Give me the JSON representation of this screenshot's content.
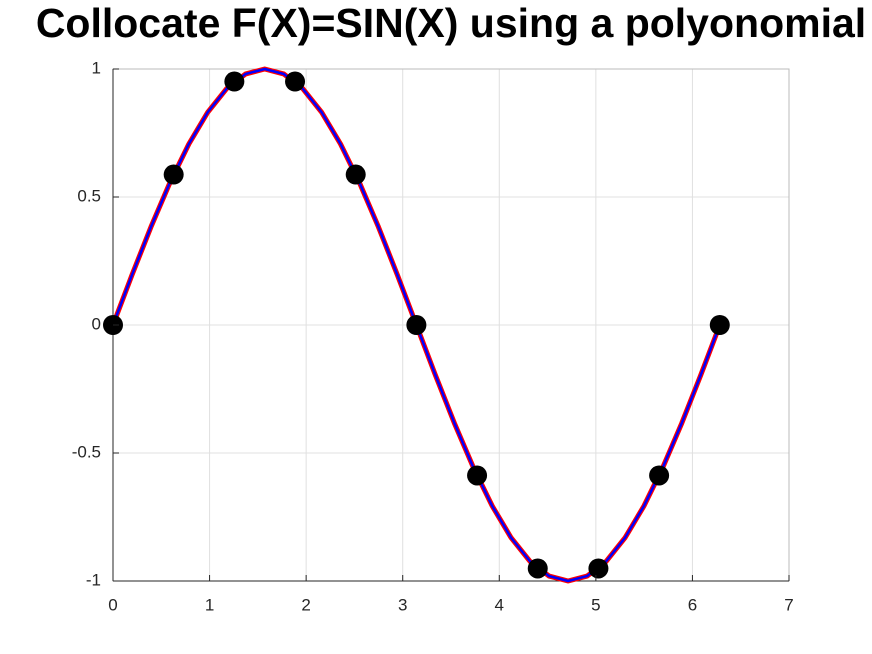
{
  "chart_data": {
    "type": "line",
    "title": "Collocate F(X)=SIN(X) using a polyonomial",
    "xlim": [
      0,
      7
    ],
    "xticks": [
      0,
      1,
      2,
      3,
      4,
      5,
      6,
      7
    ],
    "ylim": [
      -1,
      1
    ],
    "yticks": [
      -1,
      -0.5,
      0,
      0.5,
      1
    ],
    "grid": true,
    "series": [
      {
        "color": "#ff0000",
        "style": "line",
        "x": [
          0,
          0.1963,
          0.3927,
          0.589,
          0.7854,
          0.9817,
          1.1781,
          1.3744,
          1.5708,
          1.7671,
          1.9635,
          2.1598,
          2.3562,
          2.5525,
          2.7489,
          2.9452,
          3.1416,
          3.3379,
          3.5343,
          3.7306,
          3.927,
          4.1233,
          4.3197,
          4.516,
          4.7124,
          4.9087,
          5.1051,
          5.3014,
          5.4978,
          5.6941,
          5.8905,
          6.0868,
          6.2832
        ],
        "values": [
          0,
          0.1951,
          0.3827,
          0.5556,
          0.7071,
          0.8315,
          0.9239,
          0.9808,
          1,
          0.9808,
          0.9239,
          0.8315,
          0.7071,
          0.5556,
          0.3827,
          0.1951,
          0,
          -0.1951,
          -0.3827,
          -0.5556,
          -0.7071,
          -0.8315,
          -0.9239,
          -0.9808,
          -1,
          -0.9808,
          -0.9239,
          -0.8315,
          -0.7071,
          -0.5556,
          -0.3827,
          -0.1951,
          0
        ]
      },
      {
        "color": "#0000ff",
        "style": "line",
        "x": [
          0,
          0.1963,
          0.3927,
          0.589,
          0.7854,
          0.9817,
          1.1781,
          1.3744,
          1.5708,
          1.7671,
          1.9635,
          2.1598,
          2.3562,
          2.5525,
          2.7489,
          2.9452,
          3.1416,
          3.3379,
          3.5343,
          3.7306,
          3.927,
          4.1233,
          4.3197,
          4.516,
          4.7124,
          4.9087,
          5.1051,
          5.3014,
          5.4978,
          5.6941,
          5.8905,
          6.0868,
          6.2832
        ],
        "values": [
          0,
          0.1951,
          0.3827,
          0.5556,
          0.7071,
          0.8315,
          0.9239,
          0.9808,
          1,
          0.9808,
          0.9239,
          0.8315,
          0.7071,
          0.5556,
          0.3827,
          0.1951,
          0,
          -0.1951,
          -0.3827,
          -0.5556,
          -0.7071,
          -0.8315,
          -0.9239,
          -0.9808,
          -1,
          -0.9808,
          -0.9239,
          -0.8315,
          -0.7071,
          -0.5556,
          -0.3827,
          -0.1951,
          0
        ]
      },
      {
        "color": "#000000",
        "style": "markers",
        "x": [
          0,
          0.6283,
          1.2566,
          1.885,
          2.5133,
          3.1416,
          3.7699,
          4.3982,
          5.0265,
          5.6549,
          6.2832
        ],
        "values": [
          0,
          0.5878,
          0.9511,
          0.9511,
          0.5878,
          0,
          -0.5878,
          -0.9511,
          -0.9511,
          -0.5878,
          0
        ]
      }
    ]
  }
}
